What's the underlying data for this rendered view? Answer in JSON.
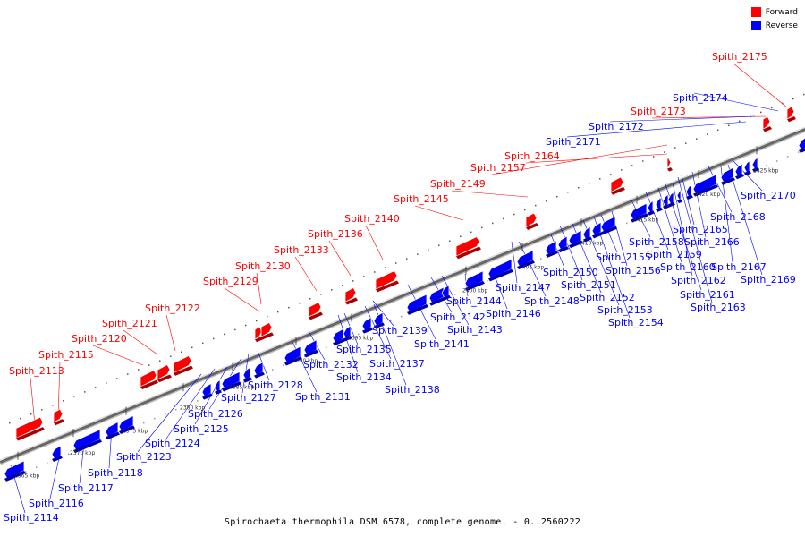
{
  "legend": [
    {
      "label": "Forward",
      "color": "#ff0000"
    },
    {
      "label": "Reverse",
      "color": "#0000ff"
    }
  ],
  "caption": "Spirochaeta thermophila DSM 6578, complete genome. - 0..2560222",
  "colors": {
    "forward": "#ff0000",
    "reverse": "#0000ff",
    "backbone": "#666666"
  },
  "ticks": [
    "2365 kbp",
    "2370 kbp",
    "2375 kbp",
    "2380 kbp",
    "2385 kbp",
    "2390 kbp",
    "2395 kbp",
    "2400 kbp",
    "2405 kbp",
    "2410 kbp",
    "2415 kbp",
    "2420 kbp",
    "2425 kbp",
    "2430 kbp"
  ],
  "forward_genes": [
    "Spith_2113",
    "Spith_2115",
    "Spith_2120",
    "Spith_2121",
    "Spith_2122",
    "Spith_2129",
    "Spith_2130",
    "Spith_2133",
    "Spith_2136",
    "Spith_2140",
    "Spith_2145",
    "Spith_2149",
    "Spith_2157",
    "Spith_2164",
    "Spith_2173",
    "Spith_2175"
  ],
  "reverse_genes": [
    "Spith_2114",
    "Spith_2116",
    "Spith_2117",
    "Spith_2118",
    "Spith_2123",
    "Spith_2124",
    "Spith_2125",
    "Spith_2126",
    "Spith_2127",
    "Spith_2128",
    "Spith_2131",
    "Spith_2132",
    "Spith_2134",
    "Spith_2135",
    "Spith_2137",
    "Spith_2138",
    "Spith_2139",
    "Spith_2141",
    "Spith_2142",
    "Spith_2143",
    "Spith_2144",
    "Spith_2146",
    "Spith_2147",
    "Spith_2148",
    "Spith_2150",
    "Spith_2151",
    "Spith_2152",
    "Spith_2153",
    "Spith_2154",
    "Spith_2155",
    "Spith_2156",
    "Spith_2158",
    "Spith_2159",
    "Spith_2160",
    "Spith_2161",
    "Spith_2162",
    "Spith_2163",
    "Spith_2165",
    "Spith_2166",
    "Spith_2167",
    "Spith_2168",
    "Spith_2169",
    "Spith_2170",
    "Spith_2171",
    "Spith_2172",
    "Spith_2174"
  ]
}
